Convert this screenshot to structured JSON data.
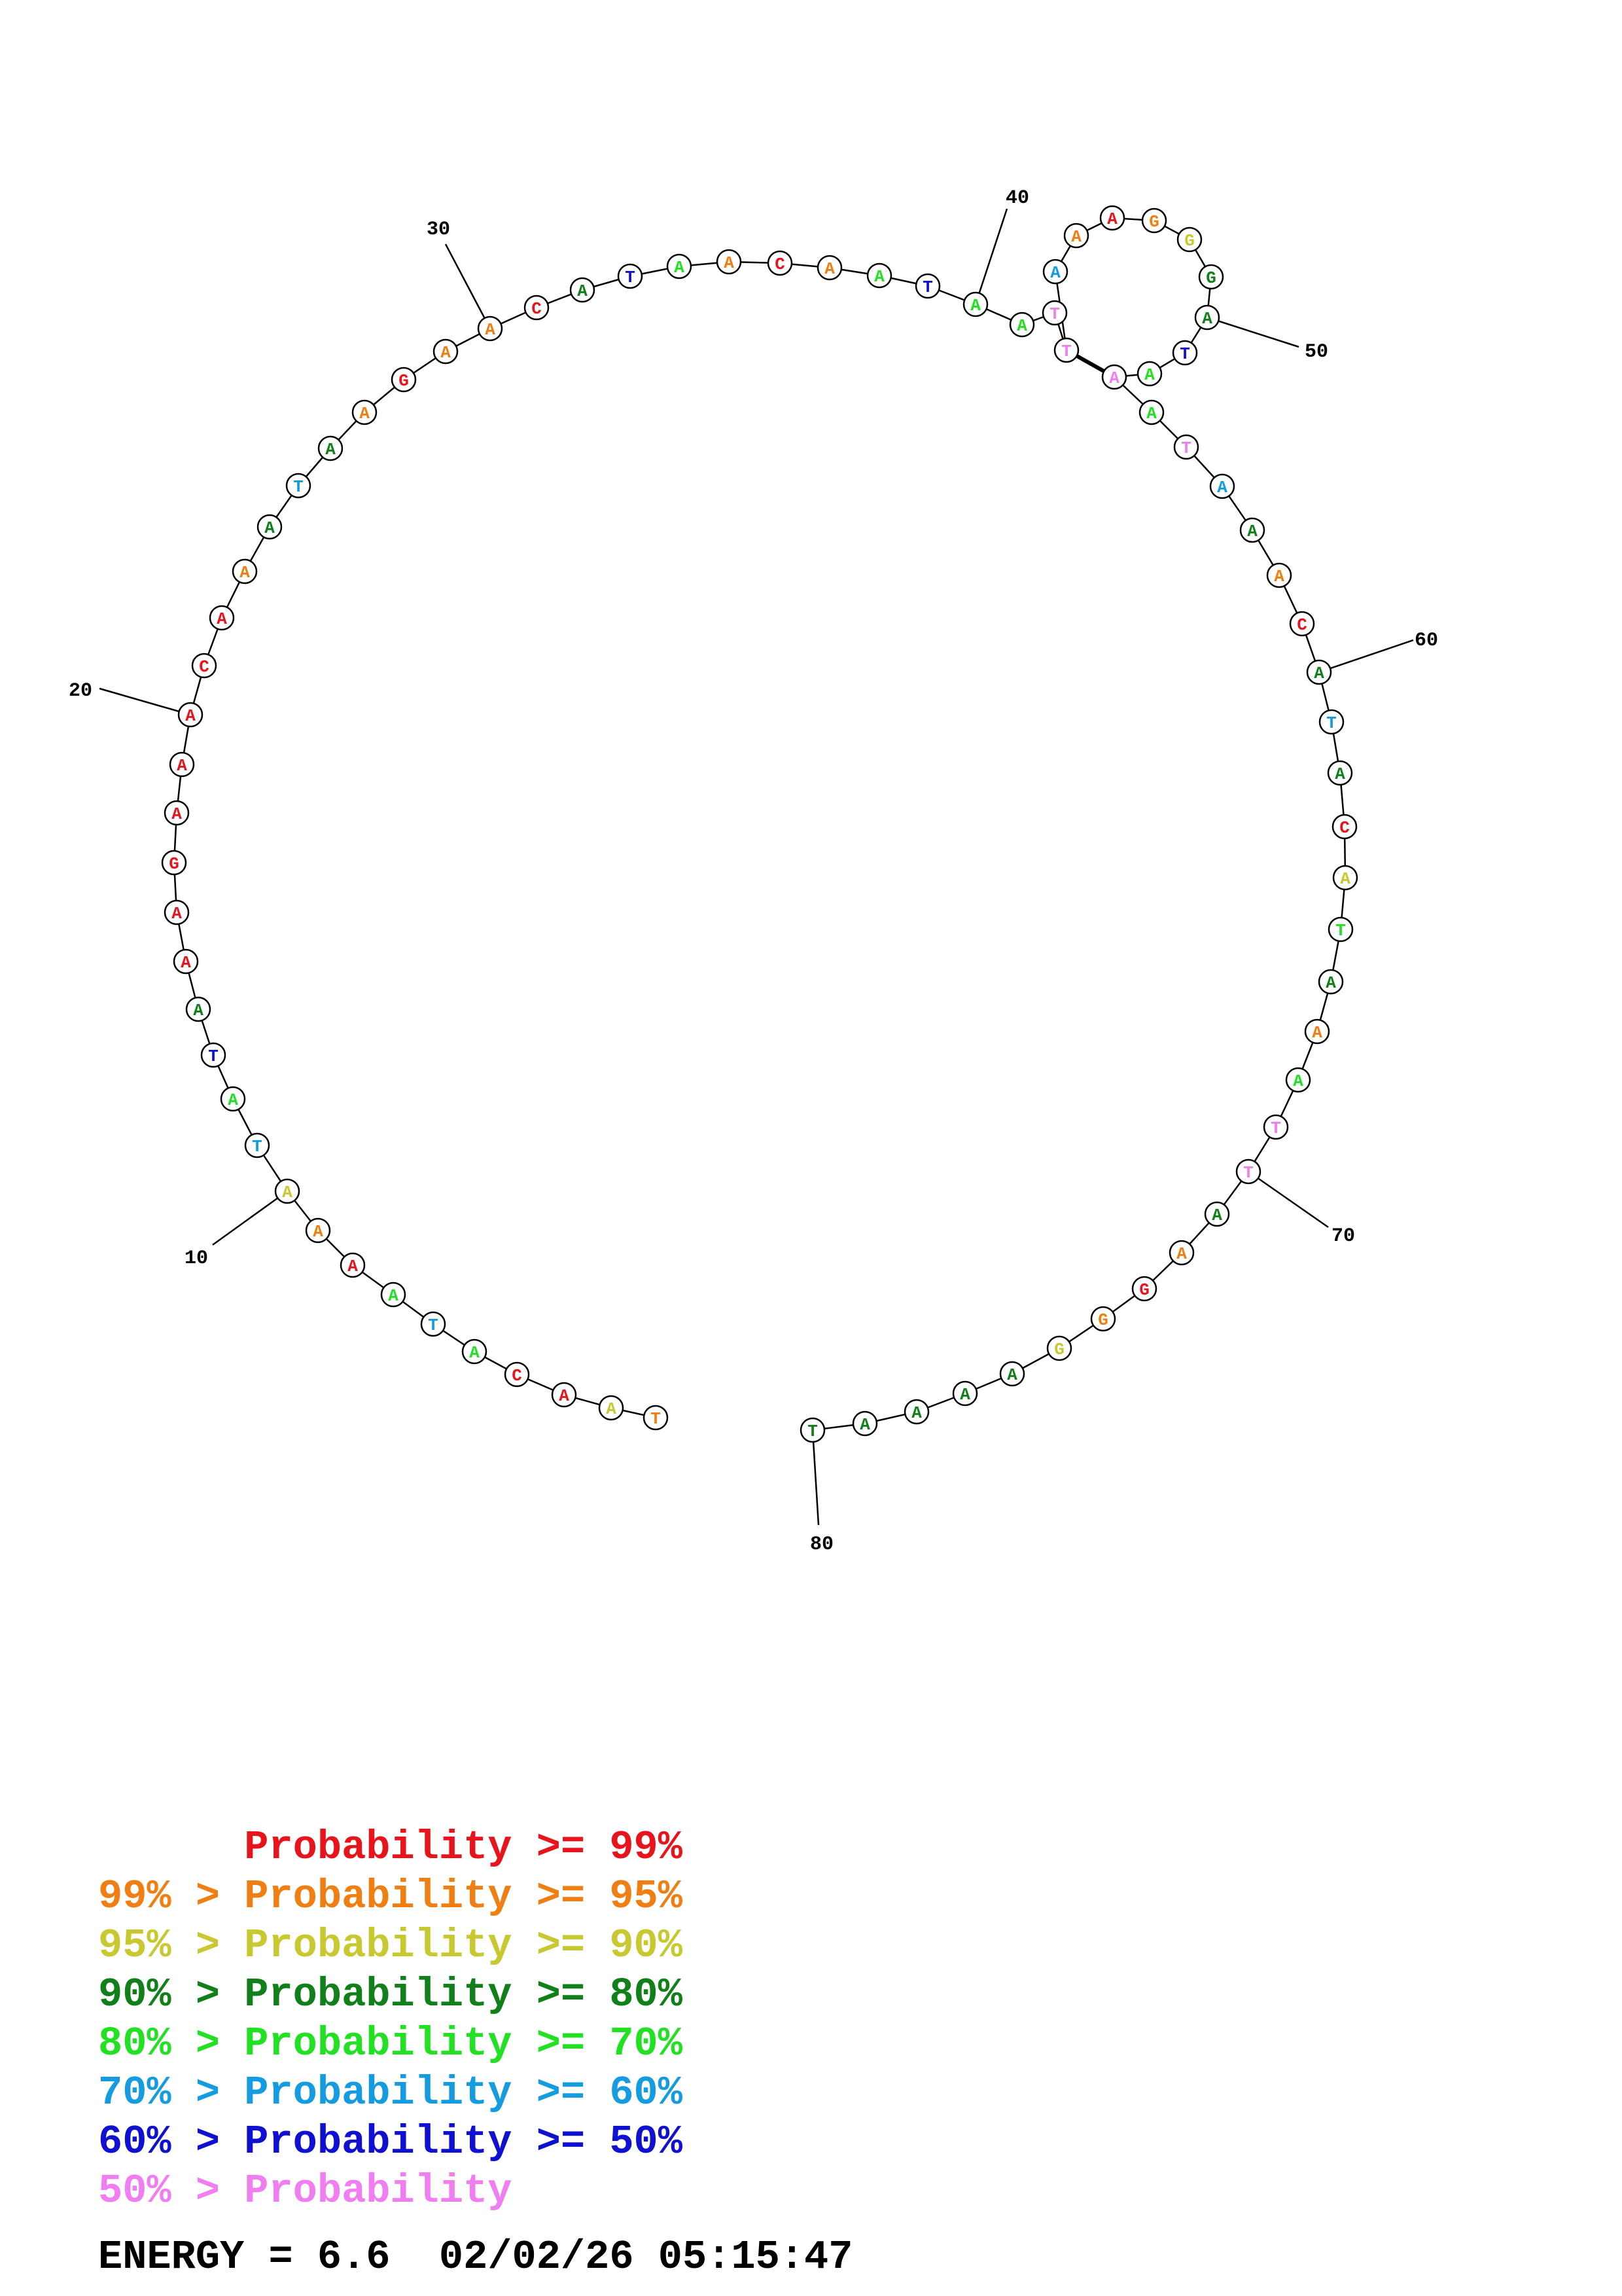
{
  "colors": {
    "p99": "#e8141c",
    "p95": "#f07f13",
    "p90": "#c8c830",
    "p80": "#11801a",
    "p70": "#22e022",
    "p60": "#149be0",
    "p50": "#1010d0",
    "plow": "#f07ef0"
  },
  "nucleotides": [
    {
      "i": 1,
      "base": "T",
      "prob": "p95"
    },
    {
      "i": 2,
      "base": "A",
      "prob": "p90"
    },
    {
      "i": 3,
      "base": "A",
      "prob": "p99"
    },
    {
      "i": 4,
      "base": "C",
      "prob": "p99"
    },
    {
      "i": 5,
      "base": "A",
      "prob": "p70"
    },
    {
      "i": 6,
      "base": "T",
      "prob": "p60"
    },
    {
      "i": 7,
      "base": "A",
      "prob": "p70"
    },
    {
      "i": 8,
      "base": "A",
      "prob": "p99"
    },
    {
      "i": 9,
      "base": "A",
      "prob": "p95"
    },
    {
      "i": 10,
      "base": "A",
      "prob": "p90"
    },
    {
      "i": 11,
      "base": "T",
      "prob": "p60"
    },
    {
      "i": 12,
      "base": "A",
      "prob": "p70"
    },
    {
      "i": 13,
      "base": "T",
      "prob": "p50"
    },
    {
      "i": 14,
      "base": "A",
      "prob": "p80"
    },
    {
      "i": 15,
      "base": "A",
      "prob": "p99"
    },
    {
      "i": 16,
      "base": "A",
      "prob": "p99"
    },
    {
      "i": 17,
      "base": "G",
      "prob": "p99"
    },
    {
      "i": 18,
      "base": "A",
      "prob": "p99"
    },
    {
      "i": 19,
      "base": "A",
      "prob": "p99"
    },
    {
      "i": 20,
      "base": "A",
      "prob": "p99"
    },
    {
      "i": 21,
      "base": "C",
      "prob": "p99"
    },
    {
      "i": 22,
      "base": "A",
      "prob": "p99"
    },
    {
      "i": 23,
      "base": "A",
      "prob": "p95"
    },
    {
      "i": 24,
      "base": "A",
      "prob": "p80"
    },
    {
      "i": 25,
      "base": "T",
      "prob": "p60"
    },
    {
      "i": 26,
      "base": "A",
      "prob": "p80"
    },
    {
      "i": 27,
      "base": "A",
      "prob": "p95"
    },
    {
      "i": 28,
      "base": "G",
      "prob": "p99"
    },
    {
      "i": 29,
      "base": "A",
      "prob": "p95"
    },
    {
      "i": 30,
      "base": "A",
      "prob": "p95"
    },
    {
      "i": 31,
      "base": "C",
      "prob": "p99"
    },
    {
      "i": 32,
      "base": "A",
      "prob": "p80"
    },
    {
      "i": 33,
      "base": "T",
      "prob": "p50"
    },
    {
      "i": 34,
      "base": "A",
      "prob": "p70"
    },
    {
      "i": 35,
      "base": "A",
      "prob": "p95"
    },
    {
      "i": 36,
      "base": "C",
      "prob": "p99"
    },
    {
      "i": 37,
      "base": "A",
      "prob": "p95"
    },
    {
      "i": 38,
      "base": "A",
      "prob": "p70"
    },
    {
      "i": 39,
      "base": "T",
      "prob": "p50"
    },
    {
      "i": 40,
      "base": "A",
      "prob": "p70"
    },
    {
      "i": 41,
      "base": "A",
      "prob": "p70"
    },
    {
      "i": 42,
      "base": "T",
      "prob": "plow"
    },
    {
      "i": 43,
      "base": "T",
      "prob": "plow"
    },
    {
      "i": 44,
      "base": "A",
      "prob": "p60"
    },
    {
      "i": 45,
      "base": "A",
      "prob": "p95"
    },
    {
      "i": 46,
      "base": "A",
      "prob": "p99"
    },
    {
      "i": 47,
      "base": "G",
      "prob": "p95"
    },
    {
      "i": 48,
      "base": "G",
      "prob": "p90"
    },
    {
      "i": 49,
      "base": "G",
      "prob": "p80"
    },
    {
      "i": 50,
      "base": "A",
      "prob": "p80"
    },
    {
      "i": 51,
      "base": "T",
      "prob": "p50"
    },
    {
      "i": 52,
      "base": "A",
      "prob": "p70"
    },
    {
      "i": 53,
      "base": "A",
      "prob": "plow"
    },
    {
      "i": 54,
      "base": "A",
      "prob": "p70"
    },
    {
      "i": 55,
      "base": "T",
      "prob": "plow"
    },
    {
      "i": 56,
      "base": "A",
      "prob": "p60"
    },
    {
      "i": 57,
      "base": "A",
      "prob": "p80"
    },
    {
      "i": 58,
      "base": "A",
      "prob": "p95"
    },
    {
      "i": 59,
      "base": "C",
      "prob": "p99"
    },
    {
      "i": 60,
      "base": "A",
      "prob": "p80"
    },
    {
      "i": 61,
      "base": "T",
      "prob": "p60"
    },
    {
      "i": 62,
      "base": "A",
      "prob": "p80"
    },
    {
      "i": 63,
      "base": "C",
      "prob": "p99"
    },
    {
      "i": 64,
      "base": "A",
      "prob": "p90"
    },
    {
      "i": 65,
      "base": "T",
      "prob": "p70"
    },
    {
      "i": 66,
      "base": "A",
      "prob": "p80"
    },
    {
      "i": 67,
      "base": "A",
      "prob": "p95"
    },
    {
      "i": 68,
      "base": "A",
      "prob": "p70"
    },
    {
      "i": 69,
      "base": "T",
      "prob": "plow"
    },
    {
      "i": 70,
      "base": "T",
      "prob": "plow"
    },
    {
      "i": 71,
      "base": "A",
      "prob": "p80"
    },
    {
      "i": 72,
      "base": "A",
      "prob": "p95"
    },
    {
      "i": 73,
      "base": "G",
      "prob": "p99"
    },
    {
      "i": 74,
      "base": "G",
      "prob": "p95"
    },
    {
      "i": 75,
      "base": "G",
      "prob": "p90"
    },
    {
      "i": 76,
      "base": "A",
      "prob": "p80"
    },
    {
      "i": 77,
      "base": "A",
      "prob": "p80"
    },
    {
      "i": 78,
      "base": "A",
      "prob": "p80"
    },
    {
      "i": 79,
      "base": "A",
      "prob": "p80"
    },
    {
      "i": 80,
      "base": "T",
      "prob": "p80"
    }
  ],
  "position_labels": [
    "10",
    "20",
    "30",
    "40",
    "50",
    "60",
    "70",
    "80"
  ],
  "pairs": [
    [
      43,
      53
    ]
  ],
  "legend": [
    {
      "prefix": "",
      "label": "Probability",
      "suffix": ">= 99%",
      "color": "p99"
    },
    {
      "prefix": "99% >",
      "label": "Probability",
      "suffix": ">= 95%",
      "color": "p95"
    },
    {
      "prefix": "95% >",
      "label": "Probability",
      "suffix": ">= 90%",
      "color": "p90"
    },
    {
      "prefix": "90% >",
      "label": "Probability",
      "suffix": ">= 80%",
      "color": "p80"
    },
    {
      "prefix": "80% >",
      "label": "Probability",
      "suffix": ">= 70%",
      "color": "p70"
    },
    {
      "prefix": "70% >",
      "label": "Probability",
      "suffix": ">= 60%",
      "color": "p60"
    },
    {
      "prefix": "60% >",
      "label": "Probability",
      "suffix": ">= 50%",
      "color": "p50"
    },
    {
      "prefix": "50% >",
      "label": "Probability",
      "suffix": "",
      "color": "plow"
    }
  ],
  "footer": {
    "energy": "ENERGY = 6.6",
    "timestamp": "02/02/26 05:15:47"
  }
}
